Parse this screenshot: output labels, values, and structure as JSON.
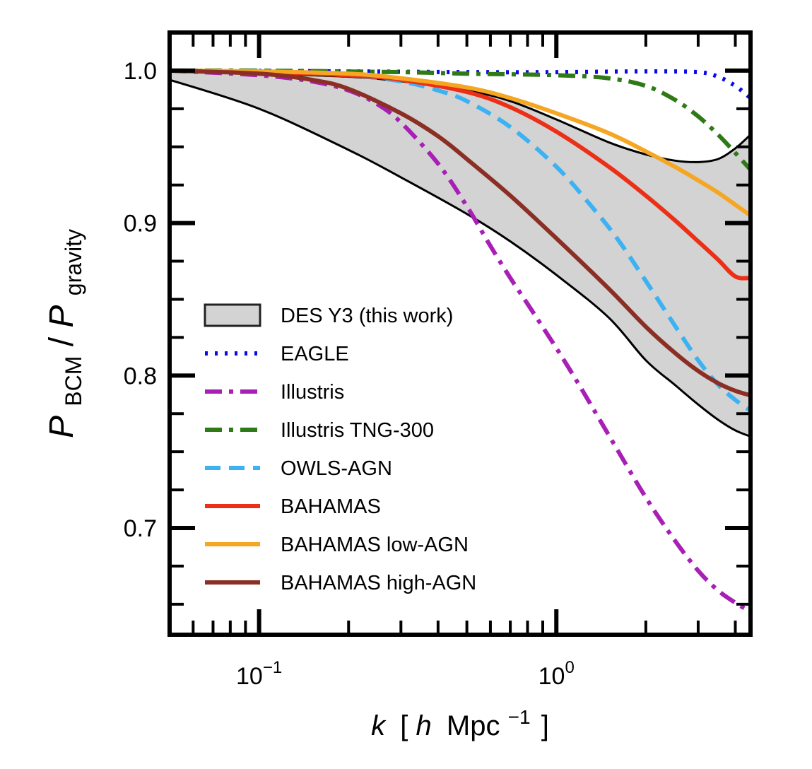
{
  "chart_data": {
    "type": "line",
    "xscale": "log",
    "xlim": [
      0.05,
      4.5
    ],
    "ylim": [
      0.63,
      1.025
    ],
    "grid": false,
    "legend_position": "lower-left",
    "xlabel": {
      "var": "k",
      "open": "[",
      "h": "h",
      "unit": "Mpc",
      "exp": "−1",
      "close": "]"
    },
    "ylabel": {
      "var1": "P",
      "sub1": "BCM",
      "slash": "/",
      "var2": "P",
      "sub2": "gravity"
    },
    "x_ticks": [
      {
        "value": 0.1,
        "base": "10",
        "exp": "−1"
      },
      {
        "value": 1.0,
        "base": "10",
        "exp": "0"
      }
    ],
    "y_ticks": [
      {
        "value": 0.7,
        "label": "0.7"
      },
      {
        "value": 0.8,
        "label": "0.8"
      },
      {
        "value": 0.9,
        "label": "0.9"
      },
      {
        "value": 1.0,
        "label": "1.0"
      }
    ],
    "band": {
      "name": "DES Y3 (this work)",
      "fill": "#d3d3d3",
      "stroke": "#000000",
      "x": [
        0.05,
        0.1,
        0.2,
        0.3,
        0.5,
        0.7,
        1.0,
        1.5,
        2.0,
        2.5,
        3.0,
        3.5,
        4.0,
        4.5
      ],
      "upper": [
        1.0,
        0.998,
        0.996,
        0.993,
        0.987,
        0.98,
        0.968,
        0.953,
        0.945,
        0.941,
        0.94,
        0.942,
        0.949,
        0.958
      ],
      "lower": [
        0.994,
        0.975,
        0.948,
        0.93,
        0.906,
        0.888,
        0.866,
        0.838,
        0.81,
        0.794,
        0.781,
        0.771,
        0.764,
        0.76
      ]
    },
    "series": [
      {
        "name": "EAGLE",
        "color": "#0a0ae6",
        "dash": "dotted",
        "x": [
          0.05,
          0.1,
          0.2,
          0.5,
          1.0,
          2.0,
          3.0,
          3.5,
          4.0,
          4.5
        ],
        "y": [
          1.0,
          0.9998,
          0.9995,
          0.999,
          0.999,
          0.9995,
          0.999,
          0.996,
          0.99,
          0.982
        ]
      },
      {
        "name": "Illustris",
        "color": "#a81fb5",
        "dash": "dashdot",
        "x": [
          0.05,
          0.1,
          0.15,
          0.2,
          0.25,
          0.3,
          0.4,
          0.5,
          0.6,
          0.7,
          0.8,
          1.0,
          1.2,
          1.5,
          2.0,
          2.5,
          3.0,
          3.5,
          4.0,
          4.5
        ],
        "y": [
          1.0,
          0.997,
          0.993,
          0.987,
          0.978,
          0.966,
          0.939,
          0.911,
          0.885,
          0.864,
          0.847,
          0.818,
          0.793,
          0.761,
          0.72,
          0.692,
          0.672,
          0.659,
          0.651,
          0.645
        ]
      },
      {
        "name": "Illustris TNG-300",
        "color": "#2e7a16",
        "dash": "dashdot",
        "x": [
          0.05,
          0.1,
          0.3,
          0.5,
          1.0,
          1.5,
          2.0,
          2.5,
          3.0,
          3.5,
          4.0,
          4.5
        ],
        "y": [
          1.0,
          1.0,
          0.999,
          0.998,
          0.997,
          0.995,
          0.99,
          0.981,
          0.97,
          0.958,
          0.946,
          0.935
        ]
      },
      {
        "name": "OWLS-AGN",
        "color": "#3db2f2",
        "dash": "dashed",
        "x": [
          0.05,
          0.1,
          0.2,
          0.3,
          0.4,
          0.5,
          0.7,
          1.0,
          1.3,
          1.6,
          2.0,
          2.5,
          3.0,
          3.5,
          4.0,
          4.5
        ],
        "y": [
          1.0,
          0.999,
          0.997,
          0.993,
          0.987,
          0.98,
          0.963,
          0.937,
          0.912,
          0.89,
          0.862,
          0.833,
          0.81,
          0.794,
          0.784,
          0.777
        ]
      },
      {
        "name": "BAHAMAS",
        "color": "#ec3017",
        "dash": "solid",
        "x": [
          0.05,
          0.1,
          0.2,
          0.3,
          0.5,
          0.7,
          1.0,
          1.5,
          2.0,
          2.5,
          3.0,
          3.5,
          4.0,
          4.5
        ],
        "y": [
          1.0,
          0.999,
          0.997,
          0.994,
          0.986,
          0.976,
          0.96,
          0.937,
          0.918,
          0.902,
          0.888,
          0.876,
          0.865,
          0.864
        ]
      },
      {
        "name": "BAHAMAS low-AGN",
        "color": "#f5a623",
        "dash": "solid",
        "x": [
          0.05,
          0.1,
          0.2,
          0.3,
          0.5,
          0.7,
          1.0,
          1.5,
          2.0,
          2.5,
          3.0,
          3.5,
          4.0,
          4.5
        ],
        "y": [
          1.0,
          0.9995,
          0.998,
          0.995,
          0.989,
          0.982,
          0.972,
          0.959,
          0.947,
          0.937,
          0.928,
          0.92,
          0.912,
          0.905
        ]
      },
      {
        "name": "BAHAMAS high-AGN",
        "color": "#8b2f25",
        "dash": "solid",
        "x": [
          0.05,
          0.1,
          0.15,
          0.2,
          0.3,
          0.4,
          0.5,
          0.7,
          1.0,
          1.5,
          2.0,
          2.5,
          3.0,
          3.5,
          4.0,
          4.5
        ],
        "y": [
          1.0,
          0.998,
          0.994,
          0.988,
          0.972,
          0.957,
          0.942,
          0.918,
          0.89,
          0.857,
          0.832,
          0.815,
          0.803,
          0.795,
          0.79,
          0.787
        ]
      }
    ]
  }
}
